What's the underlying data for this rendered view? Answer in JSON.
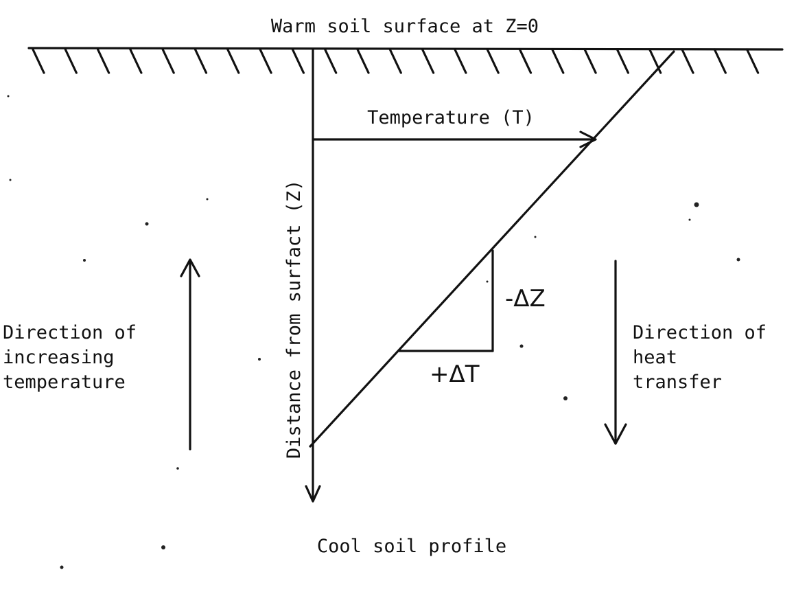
{
  "diagram": {
    "surface_label": "Warm soil surface at Z=0",
    "temperature_label": "Temperature (T)",
    "depth_label": "Distance from surfact (Z)",
    "delta_z_label": "-ΔZ",
    "delta_t_label": "+ΔT",
    "bottom_label": "Cool soil profile",
    "left_text": [
      "Direction of",
      "increasing",
      "temperature"
    ],
    "right_text": [
      "Direction of",
      "heat",
      "transfer"
    ]
  }
}
